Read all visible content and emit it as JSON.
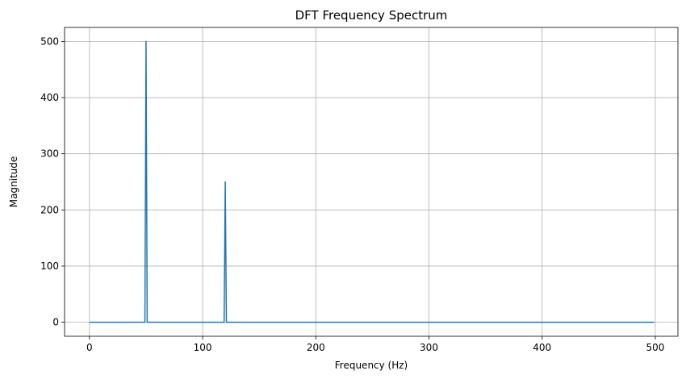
{
  "chart_data": {
    "type": "line",
    "title": "DFT Frequency Spectrum",
    "xlabel": "Frequency (Hz)",
    "ylabel": "Magnitude",
    "xlim": [
      -22,
      520
    ],
    "ylim": [
      -25,
      525
    ],
    "xticks": [
      0,
      100,
      200,
      300,
      400,
      500
    ],
    "yticks": [
      0,
      100,
      200,
      300,
      400,
      500
    ],
    "grid": true,
    "series": [
      {
        "color": "#1f77b4",
        "x": [
          0,
          49,
          50,
          51,
          119,
          120,
          121,
          499
        ],
        "y": [
          0,
          0,
          500,
          0,
          0,
          250,
          0,
          0
        ]
      }
    ]
  }
}
